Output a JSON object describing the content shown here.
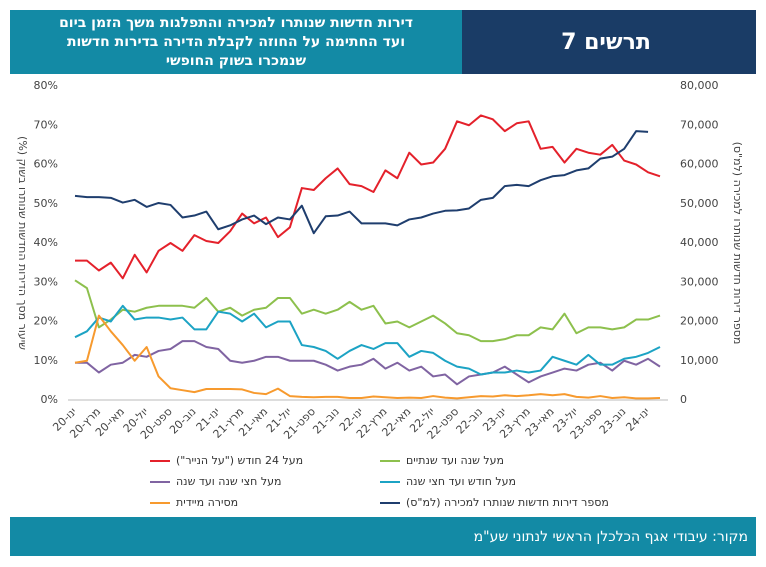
{
  "header": {
    "title_lines": [
      "דירות חדשות שנותרו למכירה והתפלגות משך הזמן ביום",
      "ועד החתימה על החוזה לקבלת הדירה בדירות חדשות",
      "שנמכרו בשוק החופשי"
    ],
    "chart_number": "תרשים 7"
  },
  "footer": {
    "source": "מקור: עיבודי אגף הכלכלן הראשי לנתוני שע\"מ"
  },
  "chart_data": {
    "type": "line",
    "y_label": "שיעור מסך הדירות החדשות שנותרו בשוק (%)",
    "y2_label": "מספר דירות חדשות שנותרו למכירה (למ\"ס)",
    "categories": [
      "ינו-20",
      null,
      "מרץ-20",
      null,
      "מאי-20",
      null,
      "יול-20",
      null,
      "ספט-20",
      null,
      "נוב-20",
      null,
      "ינו-21",
      null,
      "מרץ-21",
      null,
      "מאי-21",
      null,
      "יול-21",
      null,
      "ספט-21",
      null,
      "נוב-21",
      null,
      "ינו-22",
      null,
      "מרץ-22",
      null,
      "מאי-22",
      null,
      "יול-22",
      null,
      "ספט-22",
      null,
      "נוב-22",
      null,
      "ינו-23",
      null,
      "מרץ-23",
      null,
      "מאי-23",
      null,
      "יול-23",
      null,
      "ספט-23",
      null,
      "נוב-23",
      null,
      "ינו-24",
      null
    ],
    "ylim": [
      0,
      80
    ],
    "yticks": [
      {
        "value": 0,
        "label": "0%"
      },
      {
        "value": 10,
        "label": "10%"
      },
      {
        "value": 20,
        "label": "20%"
      },
      {
        "value": 30,
        "label": "30%"
      },
      {
        "value": 40,
        "label": "40%"
      },
      {
        "value": 50,
        "label": "50%"
      },
      {
        "value": 60,
        "label": "60%"
      },
      {
        "value": 70,
        "label": "70%"
      },
      {
        "value": 80,
        "label": "80%"
      }
    ],
    "y2lim": [
      0,
      80000
    ],
    "y2ticks": [
      0,
      {
        "value": 10000,
        "label": "10,000"
      },
      {
        "value": 20000,
        "label": "20,000"
      },
      {
        "value": 30000,
        "label": "30,000"
      },
      {
        "value": 40000,
        "label": "40,000"
      },
      {
        "value": 50000,
        "label": "50,000"
      },
      {
        "value": 60000,
        "label": "60,000"
      },
      {
        "value": 70000,
        "label": "70,000"
      },
      {
        "value": 80000,
        "label": "80,000"
      }
    ],
    "grid": false,
    "series": [
      {
        "name": "מעל 24 חודש (\"על הנייר\")",
        "color": "#e4212b",
        "values": [
          35.5,
          35.5,
          33,
          35,
          31,
          37,
          32.5,
          38,
          40,
          38,
          42,
          40.5,
          40,
          43,
          47.5,
          45,
          46.5,
          41.5,
          44,
          54,
          53.5,
          56.5,
          59,
          55,
          54.5,
          53,
          58.5,
          56.5,
          63,
          60,
          60.5,
          64,
          71,
          70,
          72.5,
          71.5,
          68.5,
          70.5,
          71,
          64,
          64.5,
          60.5,
          64,
          63,
          62.5,
          65,
          61,
          60,
          58,
          57
        ]
      },
      {
        "name": "מעל שנה ועד שנתיים",
        "color": "#8dc04d",
        "values": [
          30.5,
          28.5,
          18.5,
          20.5,
          23,
          22.5,
          23.5,
          24,
          24,
          24,
          23.5,
          26,
          22.5,
          23.5,
          21.5,
          23,
          23.5,
          26,
          26,
          22,
          23,
          22,
          23,
          25,
          23,
          24,
          19.5,
          20,
          18.5,
          20,
          21.5,
          19.5,
          17,
          16.5,
          15,
          15,
          15.5,
          16.5,
          16.5,
          18.5,
          18,
          22,
          17,
          18.5,
          18.5,
          18,
          18.5,
          20.5,
          20.5,
          21.5
        ]
      },
      {
        "name": "מעל חצי שנה ועד שנה",
        "color": "#8064a2",
        "values": [
          9.5,
          9.5,
          7,
          9,
          9.5,
          11.5,
          11,
          12.5,
          13,
          15,
          15,
          13.5,
          13,
          10,
          9.5,
          10,
          11,
          11,
          10,
          10,
          10,
          9,
          7.5,
          8.5,
          9,
          10.5,
          8,
          9.5,
          7.5,
          8.5,
          6,
          6.5,
          4,
          6,
          6.5,
          7,
          8.5,
          6.5,
          4.5,
          6,
          7,
          8,
          7.5,
          9,
          9.5,
          7.5,
          10,
          9,
          10.5,
          8.5
        ]
      },
      {
        "name": "מעל חודש ועד חצי שנה",
        "color": "#1ca3c4",
        "values": [
          16,
          17.5,
          21,
          20,
          24,
          20.5,
          21,
          21,
          20.5,
          21,
          18,
          18,
          22.5,
          22,
          20,
          22,
          18.5,
          20,
          20,
          14,
          13.5,
          12.5,
          10.5,
          12.5,
          14,
          13,
          14.5,
          14.5,
          11,
          12.5,
          12,
          10,
          8.5,
          8,
          6.5,
          7,
          7,
          7.5,
          7,
          7.5,
          11,
          10,
          9,
          11.5,
          9,
          9,
          10.5,
          11,
          12,
          13.5
        ]
      },
      {
        "name": "מסירה מיידית",
        "color": "#f79a2e",
        "values": [
          9.5,
          10,
          21.5,
          17.5,
          14,
          10,
          13.5,
          6,
          3,
          2.5,
          2,
          2.8,
          2.8,
          2.8,
          2.7,
          1.8,
          1.5,
          2.9,
          1,
          0.8,
          0.7,
          0.8,
          0.8,
          0.5,
          0.5,
          0.9,
          0.7,
          0.5,
          0.6,
          0.5,
          1,
          0.6,
          0.4,
          0.7,
          1,
          0.9,
          1.2,
          1,
          1.2,
          1.5,
          1.2,
          1.5,
          0.8,
          0.6,
          1,
          0.5,
          0.7,
          0.4,
          0.4,
          0.5
        ]
      },
      {
        "name": "מספר דירות חדשות שנותרו למכירה (למ\"ס)",
        "color": "#1f3e6e",
        "axis": "y2",
        "values": [
          52000,
          51700,
          51700,
          51500,
          50300,
          51000,
          49200,
          50200,
          49700,
          46500,
          47000,
          48000,
          43500,
          44500,
          46000,
          47000,
          44800,
          46500,
          46000,
          49500,
          42500,
          46800,
          47000,
          48000,
          45000,
          45000,
          45000,
          44500,
          46000,
          46500,
          47500,
          48200,
          48300,
          48800,
          51000,
          51500,
          54500,
          54800,
          54500,
          56000,
          57000,
          57300,
          58500,
          59000,
          61500,
          62000,
          64000,
          68500,
          68300,
          null
        ]
      }
    ]
  }
}
